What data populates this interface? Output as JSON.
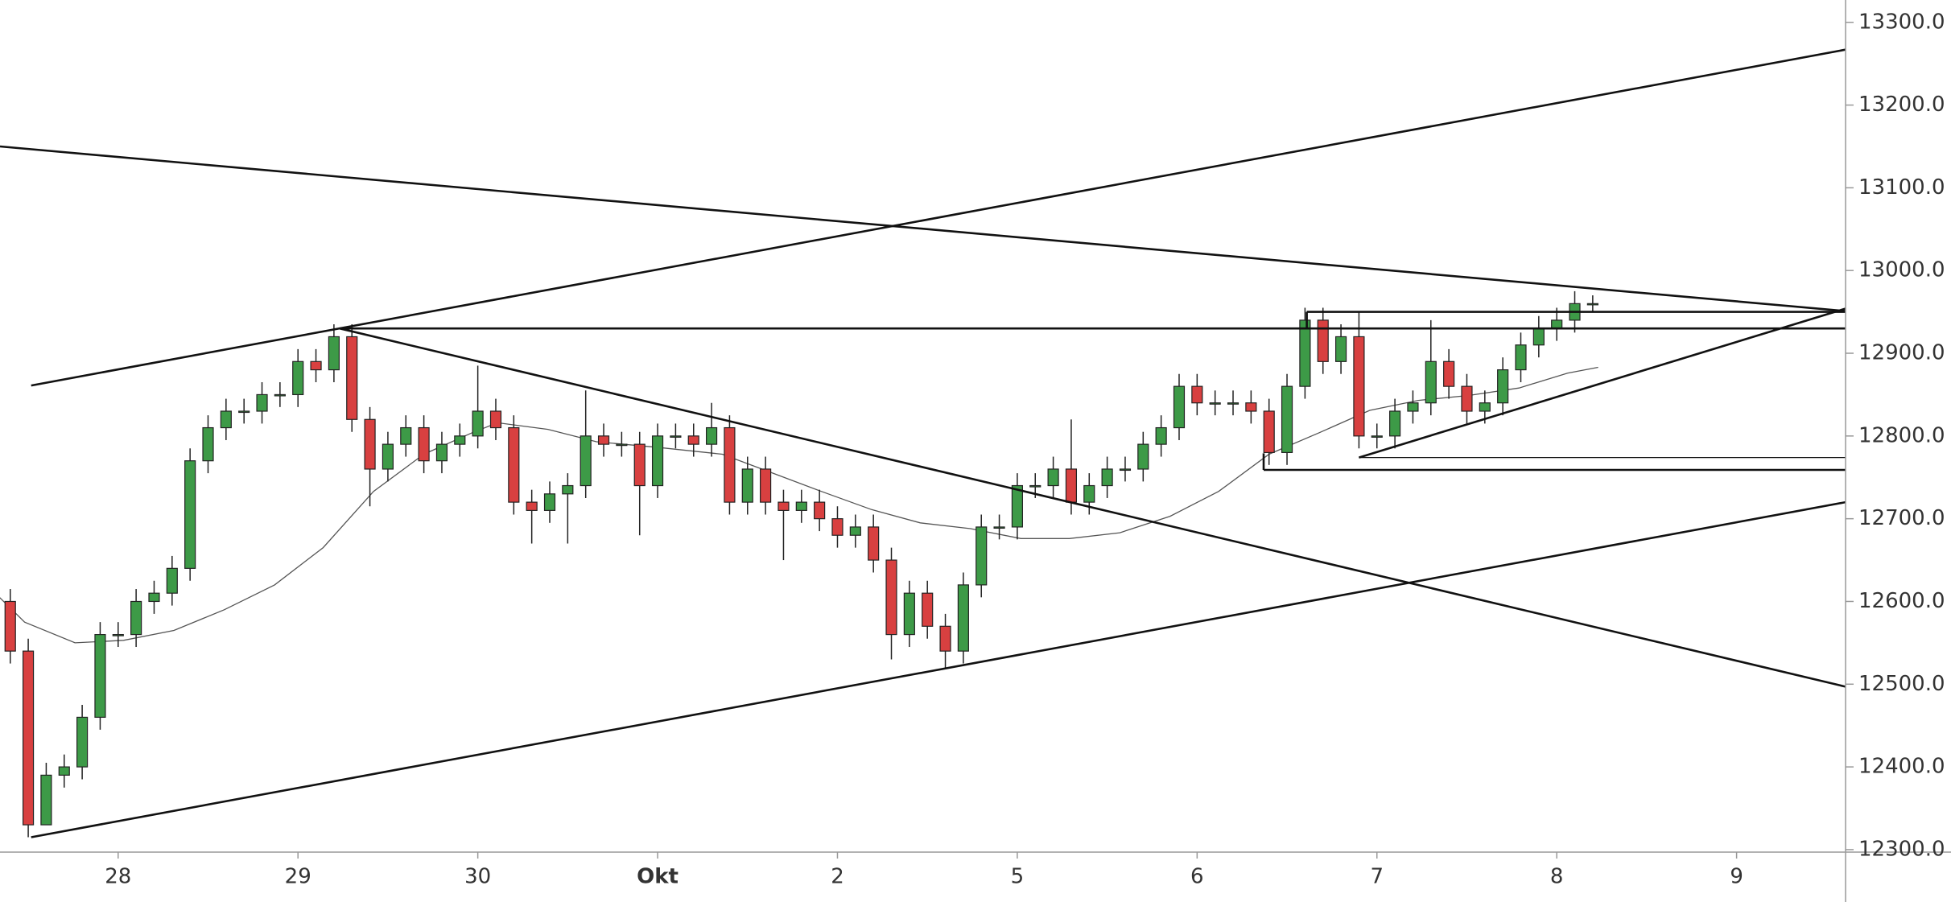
{
  "chart_data": {
    "type": "candlestick",
    "x": [
      -0.6,
      -0.5,
      -0.4,
      -0.3,
      -0.2,
      -0.1,
      0,
      0.1,
      0.2,
      0.3,
      0.4,
      0.5,
      0.6,
      0.7,
      0.8,
      0.9,
      1,
      1.1,
      1.2,
      1.3,
      1.4,
      1.5,
      1.6,
      1.7,
      1.8,
      1.9,
      2,
      2.1,
      2.2,
      2.3,
      2.4,
      2.5,
      2.6,
      2.7,
      2.8,
      2.9,
      3,
      3.1,
      3.2,
      3.3,
      3.4,
      3.5,
      3.6,
      3.7,
      3.8,
      3.9,
      4,
      4.1,
      4.2,
      4.3,
      4.4,
      4.5,
      4.6,
      4.7,
      4.8,
      4.9,
      5,
      5.1,
      5.2,
      5.3,
      5.4,
      5.5,
      5.6,
      5.7,
      5.8,
      5.9,
      6,
      6.1,
      6.2,
      6.3,
      6.4,
      6.5,
      6.6,
      6.7,
      6.8,
      6.9,
      7,
      7.1,
      7.2,
      7.3,
      7.4,
      7.5,
      7.6,
      7.7,
      7.8,
      7.9,
      8,
      8.1,
      8.2
    ],
    "open": [
      12600,
      12540,
      12330,
      12390,
      12400,
      12460,
      12560,
      12560,
      12600,
      12610,
      12640,
      12770,
      12810,
      12830,
      12830,
      12850,
      12850,
      12890,
      12880,
      12920,
      12820,
      12760,
      12790,
      12810,
      12770,
      12790,
      12800,
      12830,
      12810,
      12720,
      12710,
      12730,
      12740,
      12800,
      12790,
      12790,
      12740,
      12800,
      12800,
      12790,
      12810,
      12720,
      12760,
      12720,
      12710,
      12720,
      12700,
      12680,
      12690,
      12650,
      12560,
      12610,
      12570,
      12540,
      12620,
      12690,
      12690,
      12740,
      12740,
      12760,
      12720,
      12740,
      12760,
      12760,
      12790,
      12810,
      12860,
      12840,
      12840,
      12840,
      12830,
      12780,
      12860,
      12940,
      12890,
      12920,
      12800,
      12800,
      12830,
      12840,
      12890,
      12860,
      12830,
      12840,
      12880,
      12910,
      12930,
      12940,
      12960
    ],
    "high": [
      12615,
      12555,
      12405,
      12415,
      12475,
      12575,
      12575,
      12615,
      12625,
      12655,
      12785,
      12825,
      12845,
      12845,
      12865,
      12865,
      12905,
      12905,
      12935,
      12935,
      12835,
      12805,
      12825,
      12825,
      12805,
      12815,
      12885,
      12845,
      12825,
      12735,
      12745,
      12755,
      12855,
      12815,
      12805,
      12805,
      12815,
      12815,
      12815,
      12840,
      12825,
      12775,
      12775,
      12735,
      12735,
      12735,
      12715,
      12705,
      12705,
      12665,
      12625,
      12625,
      12585,
      12635,
      12705,
      12705,
      12755,
      12755,
      12775,
      12820,
      12755,
      12775,
      12775,
      12805,
      12825,
      12875,
      12875,
      12855,
      12855,
      12855,
      12845,
      12875,
      12955,
      12955,
      12935,
      12950,
      12815,
      12845,
      12855,
      12940,
      12905,
      12875,
      12855,
      12895,
      12925,
      12945,
      12955,
      12975,
      12970
    ],
    "low": [
      12525,
      12315,
      12335,
      12375,
      12385,
      12445,
      12545,
      12545,
      12585,
      12595,
      12625,
      12755,
      12795,
      12815,
      12815,
      12835,
      12835,
      12865,
      12865,
      12805,
      12715,
      12745,
      12775,
      12755,
      12755,
      12775,
      12785,
      12795,
      12705,
      12670,
      12695,
      12670,
      12725,
      12775,
      12775,
      12680,
      12725,
      12785,
      12775,
      12775,
      12705,
      12705,
      12705,
      12650,
      12695,
      12685,
      12665,
      12665,
      12635,
      12530,
      12545,
      12555,
      12520,
      12525,
      12605,
      12675,
      12675,
      12725,
      12725,
      12705,
      12705,
      12725,
      12745,
      12745,
      12775,
      12795,
      12825,
      12825,
      12825,
      12815,
      12765,
      12765,
      12845,
      12875,
      12875,
      12785,
      12785,
      12785,
      12815,
      12825,
      12845,
      12815,
      12815,
      12825,
      12865,
      12895,
      12915,
      12925,
      12950
    ],
    "close": [
      12540,
      12330,
      12390,
      12400,
      12460,
      12560,
      12560,
      12600,
      12610,
      12640,
      12770,
      12810,
      12830,
      12830,
      12850,
      12850,
      12890,
      12880,
      12920,
      12820,
      12760,
      12790,
      12810,
      12770,
      12790,
      12800,
      12830,
      12810,
      12720,
      12710,
      12730,
      12740,
      12800,
      12790,
      12790,
      12740,
      12800,
      12800,
      12790,
      12810,
      12720,
      12760,
      12720,
      12710,
      12720,
      12700,
      12680,
      12690,
      12650,
      12560,
      12610,
      12570,
      12540,
      12620,
      12690,
      12690,
      12740,
      12740,
      12760,
      12720,
      12740,
      12760,
      12760,
      12790,
      12810,
      12860,
      12840,
      12840,
      12840,
      12830,
      12780,
      12860,
      12940,
      12890,
      12920,
      12800,
      12800,
      12830,
      12840,
      12890,
      12860,
      12830,
      12840,
      12880,
      12910,
      12930,
      12940,
      12960,
      12960
    ],
    "up_color": "#3d9a47",
    "down_color": "#d84040",
    "outline_color": "#222222",
    "ma": {
      "color": "#555555",
      "x": [
        -0.66,
        -0.52,
        -0.24,
        0.03,
        0.31,
        0.59,
        0.87,
        1.14,
        1.42,
        1.7,
        1.97,
        2.11,
        2.39,
        2.66,
        3.01,
        3.36,
        3.63,
        3.91,
        4.19,
        4.46,
        4.74,
        5.02,
        5.29,
        5.57,
        5.85,
        6.12,
        6.4,
        6.68,
        6.96,
        7.23,
        7.51,
        7.79,
        8.06,
        8.23
      ],
      "values": [
        12605,
        12575,
        12550,
        12553,
        12565,
        12590,
        12620,
        12665,
        12733,
        12778,
        12804,
        12816,
        12808,
        12793,
        12786,
        12778,
        12756,
        12733,
        12711,
        12695,
        12688,
        12676,
        12676,
        12683,
        12703,
        12733,
        12778,
        12804,
        12831,
        12843,
        12849,
        12858,
        12876,
        12883
      ]
    },
    "trend_lines": [
      {
        "x": [
          -0.657,
          9.606
        ],
        "y": [
          13150,
          12951
        ],
        "width": 2
      },
      {
        "x": [
          -0.484,
          9.606
        ],
        "y": [
          12861,
          13267
        ],
        "width": 2
      },
      {
        "x": [
          1.232,
          9.606
        ],
        "y": [
          12930,
          12497
        ],
        "width": 2
      },
      {
        "x": [
          -0.484,
          9.606
        ],
        "y": [
          12315,
          12720
        ],
        "width": 2
      },
      {
        "x": [
          1.232,
          9.606
        ],
        "y": [
          12930,
          12930
        ],
        "width": 2
      },
      {
        "x": [
          6.61,
          9.606
        ],
        "y": [
          12950,
          12950
        ],
        "width": 2
      },
      {
        "x": [
          6.61,
          6.61
        ],
        "y": [
          12930,
          12950
        ],
        "width": 2
      },
      {
        "x": [
          6.37,
          9.606
        ],
        "y": [
          12759,
          12759
        ],
        "width": 2
      },
      {
        "x": [
          6.37,
          6.37
        ],
        "y": [
          12759,
          12779
        ],
        "width": 2
      },
      {
        "x": [
          6.9,
          9.606
        ],
        "y": [
          12774,
          12774
        ],
        "width": 1
      },
      {
        "x": [
          6.9,
          9.606
        ],
        "y": [
          12774,
          12954
        ],
        "width": 2
      }
    ],
    "xlim": [
      -0.657,
      9.606
    ],
    "xticks": [
      {
        "value": 0,
        "label": "28"
      },
      {
        "value": 1,
        "label": "29"
      },
      {
        "value": 2,
        "label": "30"
      },
      {
        "value": 3,
        "label": "Okt",
        "bold": true
      },
      {
        "value": 4,
        "label": "2"
      },
      {
        "value": 5,
        "label": "5"
      },
      {
        "value": 6,
        "label": "6"
      },
      {
        "value": 7,
        "label": "7"
      },
      {
        "value": 8,
        "label": "8"
      },
      {
        "value": 9,
        "label": "9"
      }
    ],
    "ylim": [
      12297,
      13327
    ],
    "yticks": [
      {
        "value": 12300,
        "label": "12300.0"
      },
      {
        "value": 12400,
        "label": "12400.0"
      },
      {
        "value": 12500,
        "label": "12500.0"
      },
      {
        "value": 12600,
        "label": "12600.0"
      },
      {
        "value": 12700,
        "label": "12700.0"
      },
      {
        "value": 12800,
        "label": "12800.0"
      },
      {
        "value": 12900,
        "label": "12900.0"
      },
      {
        "value": 13000,
        "label": "13000.0"
      },
      {
        "value": 13100,
        "label": "13100.0"
      },
      {
        "value": 13200,
        "label": "13200.0"
      },
      {
        "value": 13300,
        "label": "13300.0"
      }
    ]
  }
}
